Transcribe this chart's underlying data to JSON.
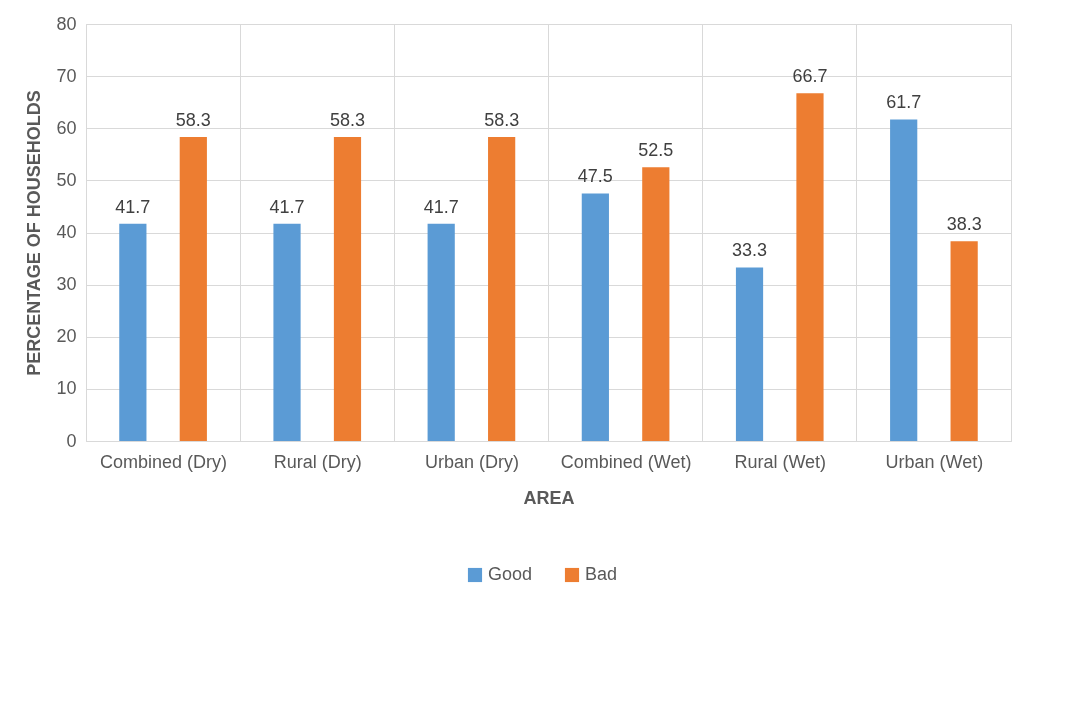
{
  "chart_data": {
    "type": "bar",
    "xlabel": "AREA",
    "ylabel": "PERCENTAGE OF HOUSEHOLDS",
    "categories": [
      "Combined (Dry)",
      "Rural (Dry)",
      "Urban (Dry)",
      "Combined (Wet)",
      "Rural (Wet)",
      "Urban (Wet)"
    ],
    "series": [
      {
        "name": "Good",
        "color": "#5b9bd5",
        "values": [
          41.7,
          41.7,
          41.7,
          47.5,
          33.3,
          61.7
        ]
      },
      {
        "name": "Bad",
        "color": "#ed7d31",
        "values": [
          58.3,
          58.3,
          58.3,
          52.5,
          66.7,
          38.3
        ]
      }
    ],
    "ylim": [
      0,
      80
    ],
    "yticks": [
      0,
      10,
      20,
      30,
      40,
      50,
      60,
      70,
      80
    ],
    "grid": true,
    "legend": "bottom",
    "data_labels": true
  }
}
